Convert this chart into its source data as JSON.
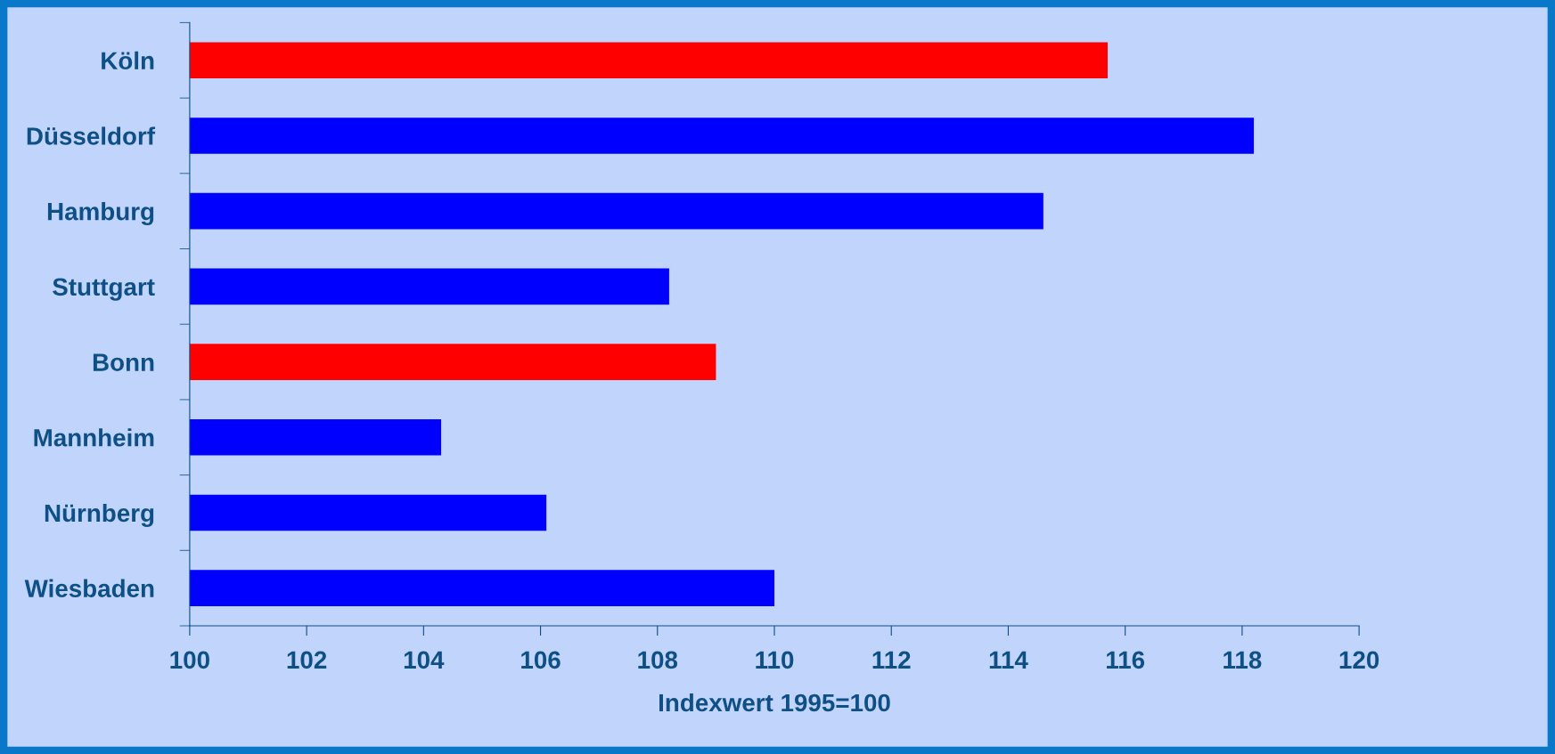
{
  "chart_data": {
    "type": "bar",
    "orientation": "horizontal",
    "xlabel": "Indexwert 1995=100",
    "categories": [
      "Köln",
      "Düsseldorf",
      "Hamburg",
      "Stuttgart",
      "Bonn",
      "Mannheim",
      "Nürnberg",
      "Wiesbaden"
    ],
    "values": [
      115.7,
      118.2,
      114.6,
      108.2,
      109.0,
      104.3,
      106.1,
      110.0
    ],
    "colors": [
      "#ff0000",
      "#0000ff",
      "#0000ff",
      "#0000ff",
      "#ff0000",
      "#0000ff",
      "#0000ff",
      "#0000ff"
    ],
    "xlim": [
      100,
      120
    ],
    "xticks": [
      100,
      102,
      104,
      106,
      108,
      110,
      112,
      114,
      116,
      118,
      120
    ],
    "grid": false,
    "legend": false
  }
}
